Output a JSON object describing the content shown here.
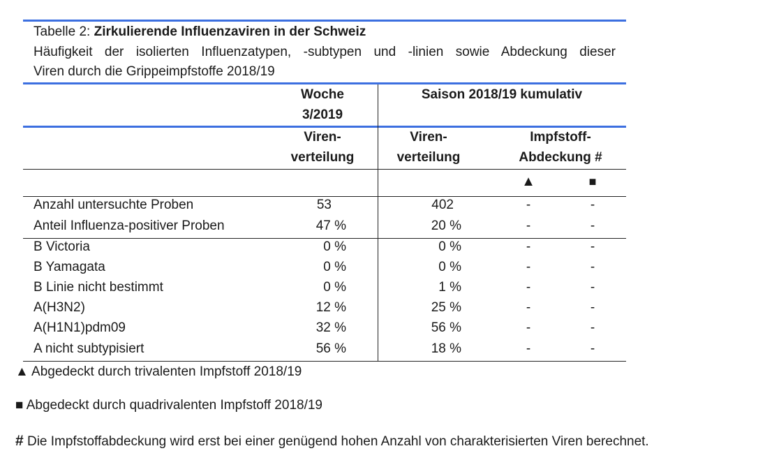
{
  "caption": {
    "prefix": "Tabelle 2: ",
    "title": "Zirkulierende Influenzaviren in der Schweiz",
    "subtitle_line1": "Häufigkeit der isolierten Influenzatypen, -subtypen und -linien sowie Abdeckung dieser",
    "subtitle_line2": "Viren durch die Grippeimpfstoffe 2018/19"
  },
  "header": {
    "week_line1": "Woche",
    "week_line2": "3/2019",
    "season": "Saison 2018/19 kumulativ",
    "viren1_l1": "Viren-",
    "viren1_l2": "verteilung",
    "viren2_l1": "Viren-",
    "viren2_l2": "verteilung",
    "impf_l1": "Impfstoff-",
    "impf_l2": "Abdeckung #",
    "triangle": "▲",
    "square": "■"
  },
  "rows": [
    {
      "label": "Anzahl untersuchte Proben",
      "week": "53",
      "season": "402",
      "tri": "-",
      "quad": "-"
    },
    {
      "label": "Anteil Influenza-positiver Proben",
      "week": "47 %",
      "season": "20 %",
      "tri": "-",
      "quad": "-"
    },
    {
      "label": "B Victoria",
      "week": "0 %",
      "season": "0 %",
      "tri": "-",
      "quad": "-"
    },
    {
      "label": "B Yamagata",
      "week": "0 %",
      "season": "0 %",
      "tri": "-",
      "quad": "-"
    },
    {
      "label": "B Linie nicht bestimmt",
      "week": "0 %",
      "season": "1 %",
      "tri": "-",
      "quad": "-"
    },
    {
      "label": "A(H3N2)",
      "week": "12 %",
      "season": "25 %",
      "tri": "-",
      "quad": "-"
    },
    {
      "label": "A(H1N1)pdm09",
      "week": "32 %",
      "season": "56 %",
      "tri": "-",
      "quad": "-"
    },
    {
      "label": "A nicht subtypisiert",
      "week": "56 %",
      "season": "18 %",
      "tri": "-",
      "quad": "-"
    }
  ],
  "footnotes": {
    "tri_symbol": "▲",
    "tri_text": "Abgedeckt durch trivalenten Impfstoff 2018/19",
    "quad_symbol": "■",
    "quad_text": "Abgedeckt durch quadrivalenten Impfstoff 2018/19",
    "hash_symbol": "#",
    "hash_text": "Die Impfstoffabdeckung wird erst bei einer genügend hohen Anzahl von charakterisierten Viren berechnet."
  }
}
